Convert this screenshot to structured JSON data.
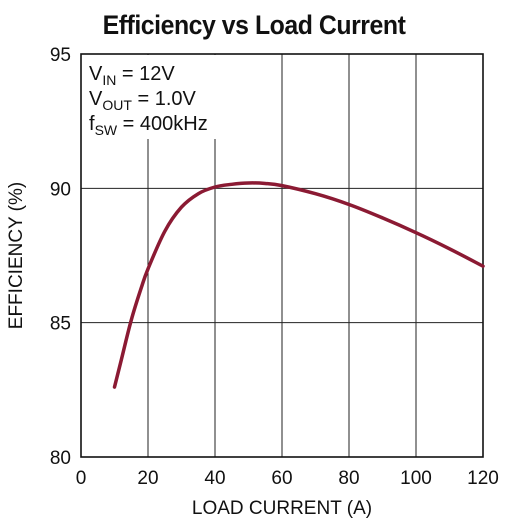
{
  "chart_data": {
    "type": "line",
    "title": "Efficiency vs Load Current",
    "xlabel": "LOAD CURRENT (A)",
    "ylabel": "EFFICIENCY (%)",
    "xlim": [
      0,
      120
    ],
    "ylim": [
      80,
      95
    ],
    "x_ticks": [
      0,
      20,
      40,
      60,
      80,
      100,
      120
    ],
    "y_ticks": [
      80,
      85,
      90,
      95
    ],
    "grid": true,
    "series": [
      {
        "color": "#8b1a33",
        "x": [
          10,
          12,
          15,
          18,
          20,
          25,
          30,
          35,
          40,
          45,
          50,
          55,
          60,
          70,
          80,
          90,
          100,
          110,
          120
        ],
        "y": [
          82.6,
          83.6,
          85.1,
          86.3,
          87.0,
          88.4,
          89.3,
          89.8,
          90.05,
          90.15,
          90.2,
          90.18,
          90.1,
          89.8,
          89.4,
          88.9,
          88.35,
          87.75,
          87.1
        ]
      }
    ],
    "annotations": [
      {
        "main": "V",
        "sub": "IN",
        "rest": " = 12V"
      },
      {
        "main": "V",
        "sub": "OUT",
        "rest": " = 1.0V"
      },
      {
        "main": "f",
        "sub": "SW",
        "rest": " = 400kHz"
      }
    ]
  }
}
